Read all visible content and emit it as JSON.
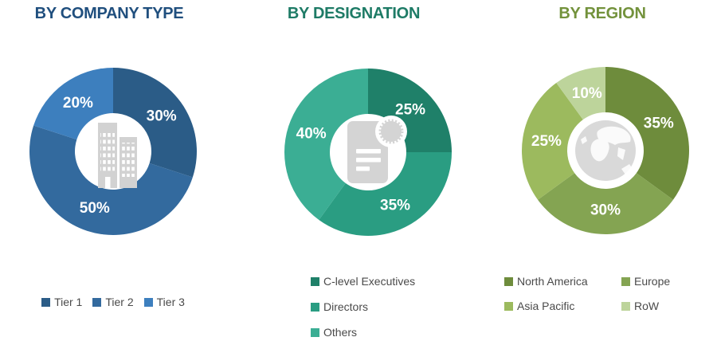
{
  "page": {
    "background": "#FFFFFF",
    "legend_text_color": "#4A4A4A"
  },
  "chart_data": [
    {
      "type": "donut",
      "title": "BY COMPANY TYPE",
      "title_color": "#204F7E",
      "units": "%",
      "start_angle_deg": 0,
      "direction": "clockwise",
      "labels": [
        "Tier 1",
        "Tier 2",
        "Tier 3"
      ],
      "values": [
        30,
        50,
        20
      ],
      "pct_labels": [
        "30%",
        "50%",
        "20%"
      ],
      "colors": [
        "#2B5C87",
        "#336A9E",
        "#3D7FBE"
      ],
      "center_icon": "buildings-icon",
      "legend_position": "bottom-row"
    },
    {
      "type": "donut",
      "title": "BY DESIGNATION",
      "title_color": "#1E7B66",
      "units": "%",
      "start_angle_deg": 0,
      "direction": "clockwise",
      "labels": [
        "C-level Executives",
        "Directors",
        "Others"
      ],
      "values": [
        25,
        35,
        40
      ],
      "pct_labels": [
        "25%",
        "35%",
        "40%"
      ],
      "colors": [
        "#1F8069",
        "#2A9D82",
        "#3BAE94"
      ],
      "center_icon": "certificate-icon",
      "legend_position": "bottom-column"
    },
    {
      "type": "donut",
      "title": "BY REGION",
      "title_color": "#73923C",
      "units": "%",
      "start_angle_deg": 0,
      "direction": "clockwise",
      "labels": [
        "North America",
        "Europe",
        "Asia Pacific",
        "RoW"
      ],
      "values": [
        35,
        30,
        25,
        10
      ],
      "pct_labels": [
        "35%",
        "30%",
        "25%",
        "10%"
      ],
      "colors": [
        "#6E8C3C",
        "#84A452",
        "#9CBA5E",
        "#BDD49B"
      ],
      "center_icon": "globe-icon",
      "legend_position": "bottom-grid-2col"
    }
  ]
}
